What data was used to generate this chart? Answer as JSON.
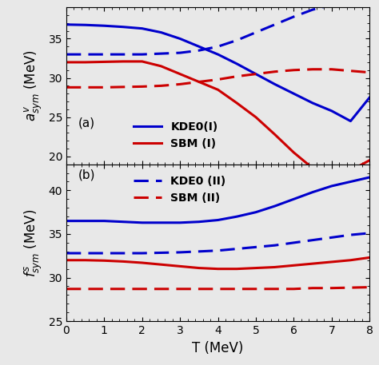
{
  "xlabel": "T (MeV)",
  "xlim": [
    0,
    8
  ],
  "ylim_a": [
    19,
    39
  ],
  "ylim_b": [
    25,
    43
  ],
  "yticks_a": [
    20,
    25,
    30,
    35
  ],
  "yticks_b": [
    25,
    30,
    35,
    40
  ],
  "T": [
    0.0,
    0.5,
    1.0,
    1.5,
    2.0,
    2.5,
    3.0,
    3.5,
    4.0,
    4.5,
    5.0,
    5.5,
    6.0,
    6.5,
    7.0,
    7.5,
    8.0
  ],
  "panel_a": {
    "KDE0_I_solid": [
      36.8,
      36.75,
      36.65,
      36.5,
      36.3,
      35.8,
      35.0,
      34.0,
      33.0,
      31.8,
      30.5,
      29.2,
      28.0,
      26.8,
      25.8,
      24.5,
      27.5
    ],
    "SBM_I_solid": [
      32.0,
      32.0,
      32.05,
      32.1,
      32.1,
      31.5,
      30.5,
      29.5,
      28.5,
      26.8,
      25.0,
      22.8,
      20.5,
      18.5,
      18.0,
      18.2,
      19.5
    ],
    "KDE0_II_dashed": [
      33.0,
      33.0,
      33.0,
      33.0,
      33.0,
      33.1,
      33.2,
      33.5,
      34.0,
      34.8,
      35.8,
      36.8,
      37.8,
      38.7,
      39.3,
      39.8,
      40.2
    ],
    "SBM_II_dashed": [
      28.8,
      28.8,
      28.8,
      28.85,
      28.9,
      29.0,
      29.2,
      29.5,
      29.8,
      30.2,
      30.5,
      30.8,
      31.0,
      31.1,
      31.1,
      30.9,
      30.7
    ]
  },
  "panel_b": {
    "KDE0_I_solid": [
      36.5,
      36.5,
      36.5,
      36.4,
      36.3,
      36.3,
      36.3,
      36.4,
      36.6,
      37.0,
      37.5,
      38.2,
      39.0,
      39.8,
      40.5,
      41.0,
      41.5
    ],
    "SBM_I_solid": [
      32.0,
      32.0,
      31.95,
      31.85,
      31.7,
      31.5,
      31.3,
      31.1,
      31.0,
      31.0,
      31.1,
      31.2,
      31.4,
      31.6,
      31.8,
      32.0,
      32.3
    ],
    "KDE0_II_dashed": [
      32.8,
      32.8,
      32.8,
      32.8,
      32.8,
      32.85,
      32.9,
      33.0,
      33.1,
      33.3,
      33.5,
      33.7,
      34.0,
      34.3,
      34.6,
      34.9,
      35.1
    ],
    "SBM_II_dashed": [
      28.7,
      28.7,
      28.7,
      28.7,
      28.7,
      28.7,
      28.7,
      28.7,
      28.7,
      28.7,
      28.7,
      28.7,
      28.7,
      28.8,
      28.8,
      28.85,
      28.9
    ]
  },
  "blue": "#0000cc",
  "red": "#cc0000",
  "linewidth": 2.2,
  "bg_color": "#e8e8e8",
  "legend_fontsize": 10,
  "label_fontsize": 12,
  "tick_fontsize": 10
}
